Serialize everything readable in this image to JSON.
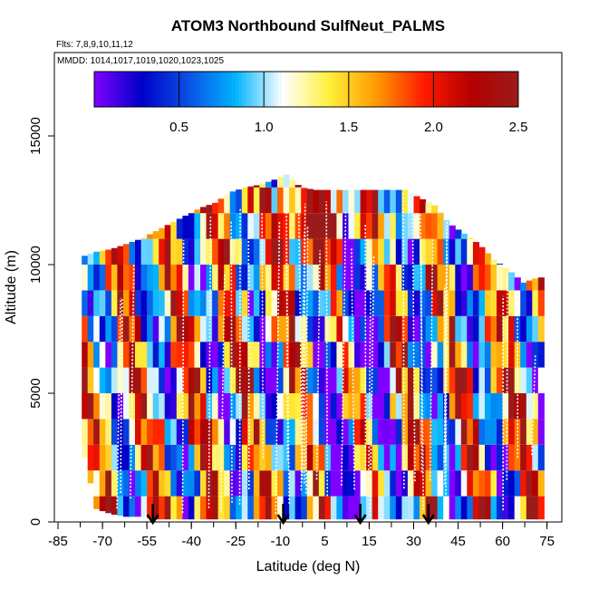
{
  "chart_data": {
    "type": "heatmap",
    "title": "ATOM3 Northbound SulfNeut_PALMS",
    "flights_label": "Flts: 7,8,9,10,11,12",
    "dates_label": "MMDD: 1014,1017,1019,1020,1023,1025",
    "xlabel": "Latitude (deg N)",
    "ylabel": "Altitude (m)",
    "xlim": [
      -85,
      85
    ],
    "ylim": [
      0,
      18000
    ],
    "x_tick_labels": [
      "-85",
      "-70",
      "-55",
      "-40",
      "-25",
      "-10",
      "5",
      "15",
      "30",
      "45",
      "60",
      "75"
    ],
    "y_ticks": [
      0,
      5000,
      10000,
      15000
    ],
    "colorbar": {
      "min": 0.0,
      "max": 2.5,
      "tick_values": [
        0.5,
        1.0,
        1.5,
        2.0,
        2.5
      ],
      "tick_labels": [
        "0.5",
        "1.0",
        "1.5",
        "2.0",
        "2.5"
      ],
      "colors": [
        "#7f00ff",
        "#0000c8",
        "#0a50e6",
        "#00b4ff",
        "#ffffff",
        "#ffef3a",
        "#ff9900",
        "#ff1a00",
        "#b40000",
        "#9b1b1b"
      ]
    },
    "envelope": {
      "lat": [
        -77,
        -72,
        -67,
        -62,
        -57,
        -52,
        -47,
        -42,
        -37,
        -32,
        -27,
        -22,
        -17,
        -12,
        -8,
        -3,
        2,
        7,
        12,
        17,
        22,
        27,
        32,
        37,
        42,
        47,
        52,
        57,
        62,
        67,
        72,
        77
      ],
      "top_m": [
        10300,
        10500,
        10600,
        10800,
        11000,
        11300,
        11600,
        11900,
        12200,
        12400,
        12800,
        13000,
        13100,
        13300,
        13500,
        13000,
        12900,
        12900,
        12900,
        12900,
        12900,
        12900,
        12900,
        12600,
        12300,
        11600,
        11200,
        10800,
        10200,
        9800,
        9300,
        9500
      ],
      "bottom_m": [
        3000,
        500,
        300,
        200,
        200,
        100,
        100,
        100,
        100,
        100,
        100,
        100,
        100,
        100,
        100,
        100,
        100,
        100,
        100,
        100,
        100,
        100,
        100,
        100,
        100,
        100,
        100,
        100,
        100,
        100,
        100,
        100
      ]
    },
    "grid": {
      "lat_start": -77,
      "lat_step": 2,
      "alt_start_m": 0,
      "alt_step_m": 1000,
      "n_lat": 78,
      "n_alt": 14
    },
    "arrows_lat": [
      -53,
      -9,
      17,
      40
    ]
  }
}
